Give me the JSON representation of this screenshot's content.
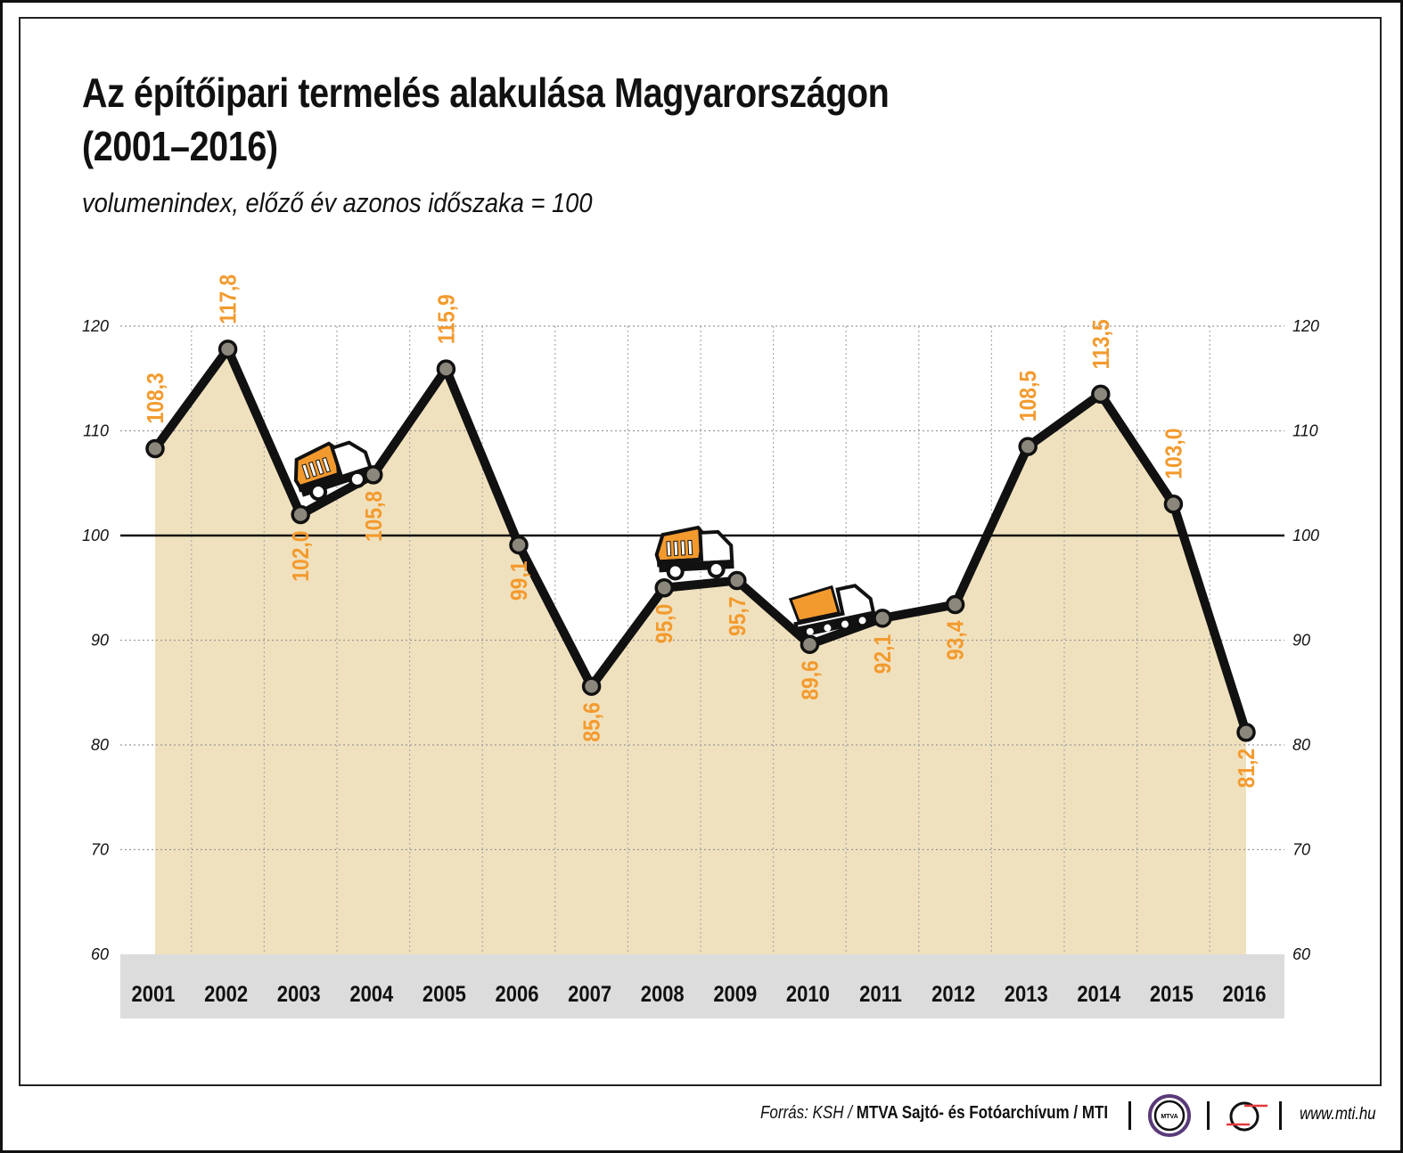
{
  "chart_data": {
    "type": "area",
    "title": "Az építőipari termelés alakulása Magyarországon (2001–2016)",
    "title_lines": [
      "Az építőipari termelés alakulása Magyarországon",
      "(2001–2016)"
    ],
    "subtitle": "volumenindex, előző év azonos időszaka = 100",
    "categories": [
      "2001",
      "2002",
      "2003",
      "2004",
      "2005",
      "2006",
      "2007",
      "2008",
      "2009",
      "2010",
      "2011",
      "2012",
      "2013",
      "2014",
      "2015",
      "2016"
    ],
    "values": [
      108.3,
      117.8,
      102.0,
      105.8,
      115.9,
      99.1,
      85.6,
      95.0,
      95.7,
      89.6,
      92.1,
      93.4,
      108.5,
      113.5,
      103.0,
      81.2
    ],
    "data_labels": [
      "108,3",
      "117,8",
      "102,0",
      "105,8",
      "115,9",
      "99,1",
      "85,6",
      "95,0",
      "95,7",
      "89,6",
      "92,1",
      "93,4",
      "108,5",
      "113,5",
      "103,0",
      "81,2"
    ],
    "ylim": [
      60,
      120
    ],
    "yticks": [
      60,
      70,
      80,
      90,
      100,
      110,
      120
    ],
    "ytick_labels": [
      "60",
      "70",
      "80",
      "90",
      "100",
      "110",
      "120"
    ],
    "y_axis": "both sides",
    "reference_line": 100,
    "grid": true,
    "colors": {
      "area": "#f0e1be",
      "line": "#111111",
      "marker": "#8c877c",
      "label": "#f39a2e",
      "xaxis_band": "#dcdcdc"
    }
  },
  "footer": {
    "source_prefix": "Forrás: KSH / ",
    "source_bold": "MTVA Sajtó- és Fotóarchívum / MTI",
    "logo_mtva": "MTVA",
    "url": "www.mti.hu"
  },
  "icons": [
    "dump-truck-icon",
    "dump-truck-icon",
    "cement-truck-icon",
    "mtva-logo",
    "mti-logo"
  ]
}
